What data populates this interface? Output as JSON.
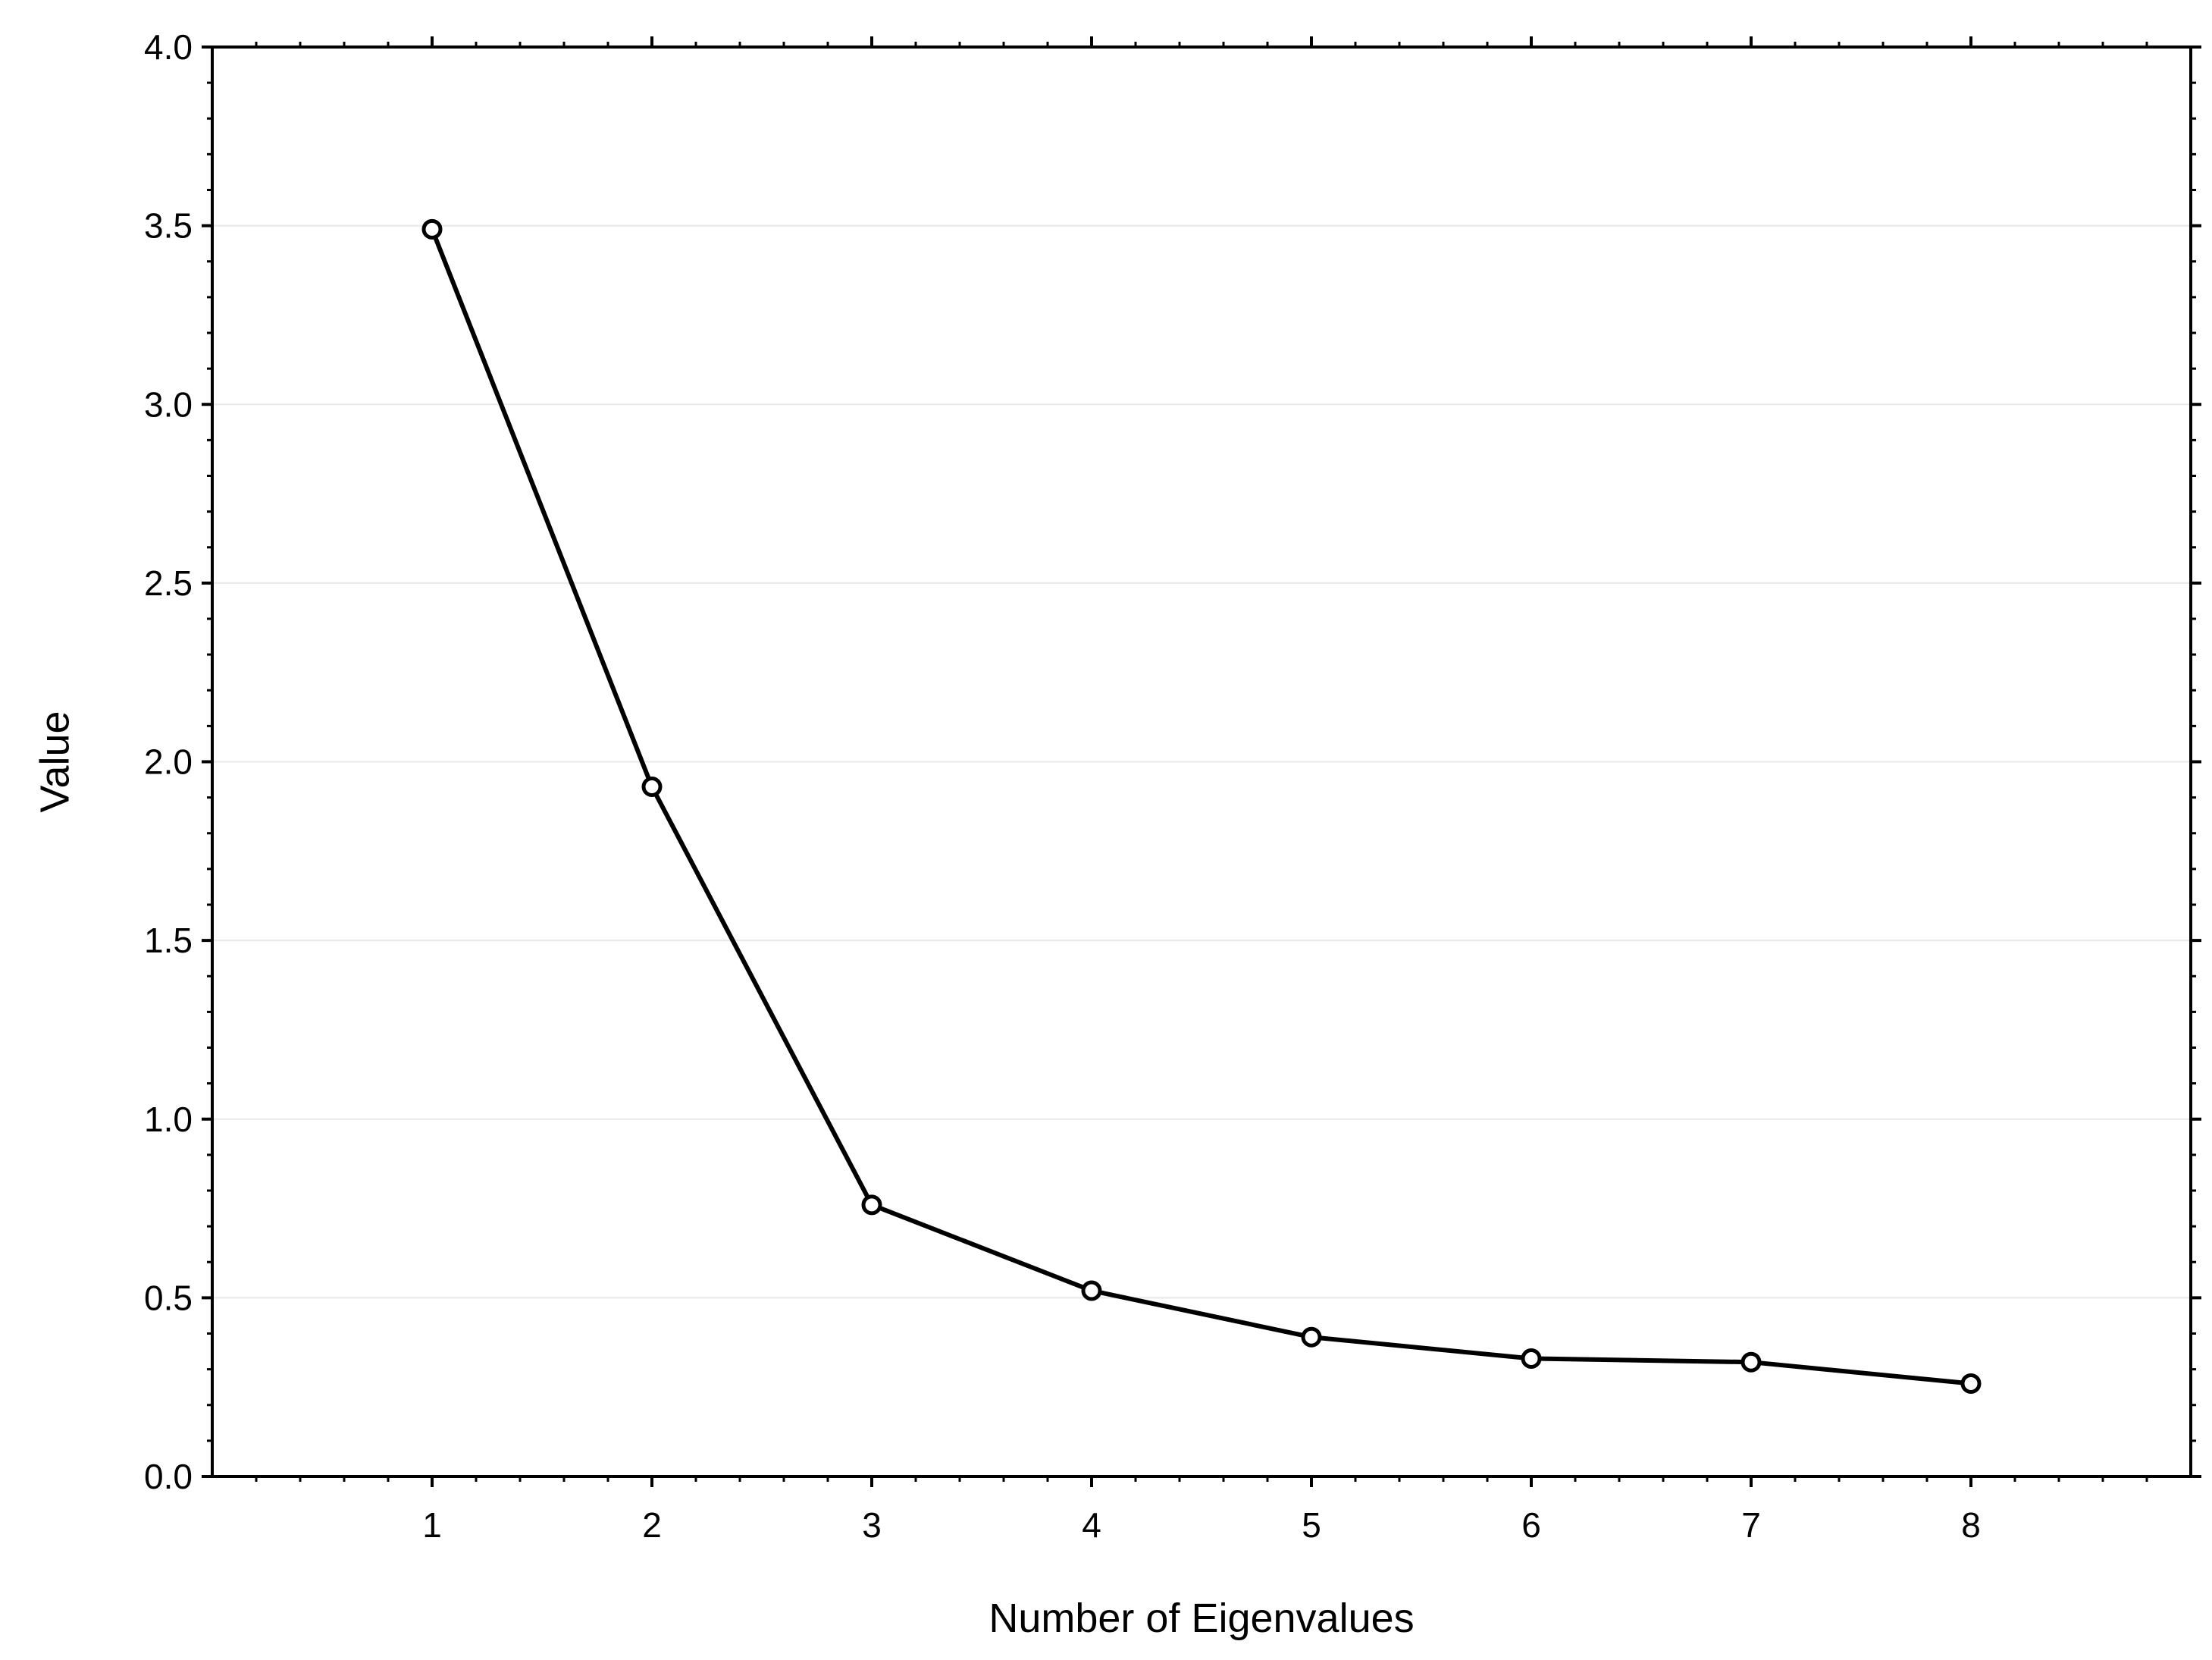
{
  "chart_data": {
    "type": "line",
    "title": "",
    "xlabel": "Number of Eigenvalues",
    "ylabel": "Value",
    "x": [
      1,
      2,
      3,
      4,
      5,
      6,
      7,
      8
    ],
    "series": [
      {
        "values": [
          3.49,
          1.93,
          0.76,
          0.52,
          0.39,
          0.33,
          0.32,
          0.26
        ]
      }
    ],
    "xlim": [
      0,
      9
    ],
    "ylim": [
      0,
      4
    ],
    "xticks": [
      "1",
      "2",
      "3",
      "4",
      "5",
      "6",
      "7",
      "8"
    ],
    "yticks": [
      "0.0",
      "0.5",
      "1.0",
      "1.5",
      "2.0",
      "2.5",
      "3.0",
      "3.5",
      "4.0"
    ],
    "grid": true,
    "legend": "none",
    "marker": "open-circle",
    "line_color": "#000000",
    "grid_color": "#e8e8e8"
  }
}
